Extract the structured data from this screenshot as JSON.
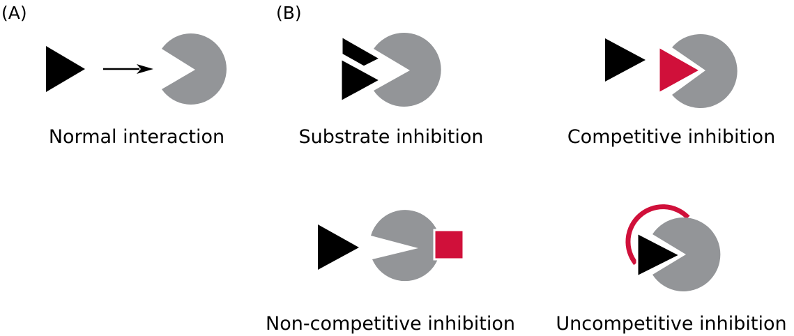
{
  "panels": {
    "a_label": "(A)",
    "b_label": "(B)"
  },
  "captions": {
    "normal": "Normal interaction",
    "substrate": "Substrate inhibition",
    "competitive": "Competitive inhibition",
    "noncompetitive": "Non-competitive inhibition",
    "uncompetitive": "Uncompetitive inhibition"
  },
  "colors": {
    "enzyme": "#939598",
    "substrate": "#000000",
    "inhibitor": "#D0103A",
    "background": "#ffffff"
  }
}
